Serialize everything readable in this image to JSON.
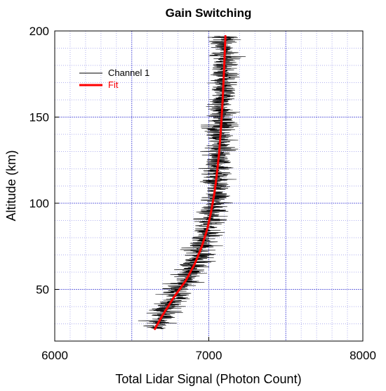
{
  "chart_data": {
    "type": "line",
    "title": "Gain Switching",
    "xlabel": "Total Lidar Signal (Photon Count)",
    "ylabel": "Altitude (km)",
    "xlim": [
      6000,
      8000
    ],
    "ylim": [
      20,
      200
    ],
    "x_ticks": [
      6000,
      7000,
      8000
    ],
    "x_tick_labels": [
      "6000",
      "7000",
      "8000"
    ],
    "y_ticks": [
      50,
      100,
      150,
      200
    ],
    "y_tick_labels": [
      "50",
      "100",
      "150",
      "200"
    ],
    "grid": true,
    "legend_position": "top-left",
    "series": [
      {
        "name": "Channel 1",
        "color": "#000000",
        "style": "noisy-line",
        "noise_halfwidth": 130,
        "y_range": [
          27,
          197
        ]
      },
      {
        "name": "Fit",
        "color": "#ff0000",
        "points": [
          {
            "y": 27,
            "x": 6650
          },
          {
            "y": 35,
            "x": 6700
          },
          {
            "y": 45,
            "x": 6770
          },
          {
            "y": 55,
            "x": 6850
          },
          {
            "y": 65,
            "x": 6910
          },
          {
            "y": 75,
            "x": 6955
          },
          {
            "y": 85,
            "x": 6990
          },
          {
            "y": 95,
            "x": 7015
          },
          {
            "y": 105,
            "x": 7035
          },
          {
            "y": 115,
            "x": 7050
          },
          {
            "y": 130,
            "x": 7068
          },
          {
            "y": 145,
            "x": 7080
          },
          {
            "y": 160,
            "x": 7090
          },
          {
            "y": 175,
            "x": 7098
          },
          {
            "y": 197,
            "x": 7108
          }
        ]
      }
    ]
  }
}
